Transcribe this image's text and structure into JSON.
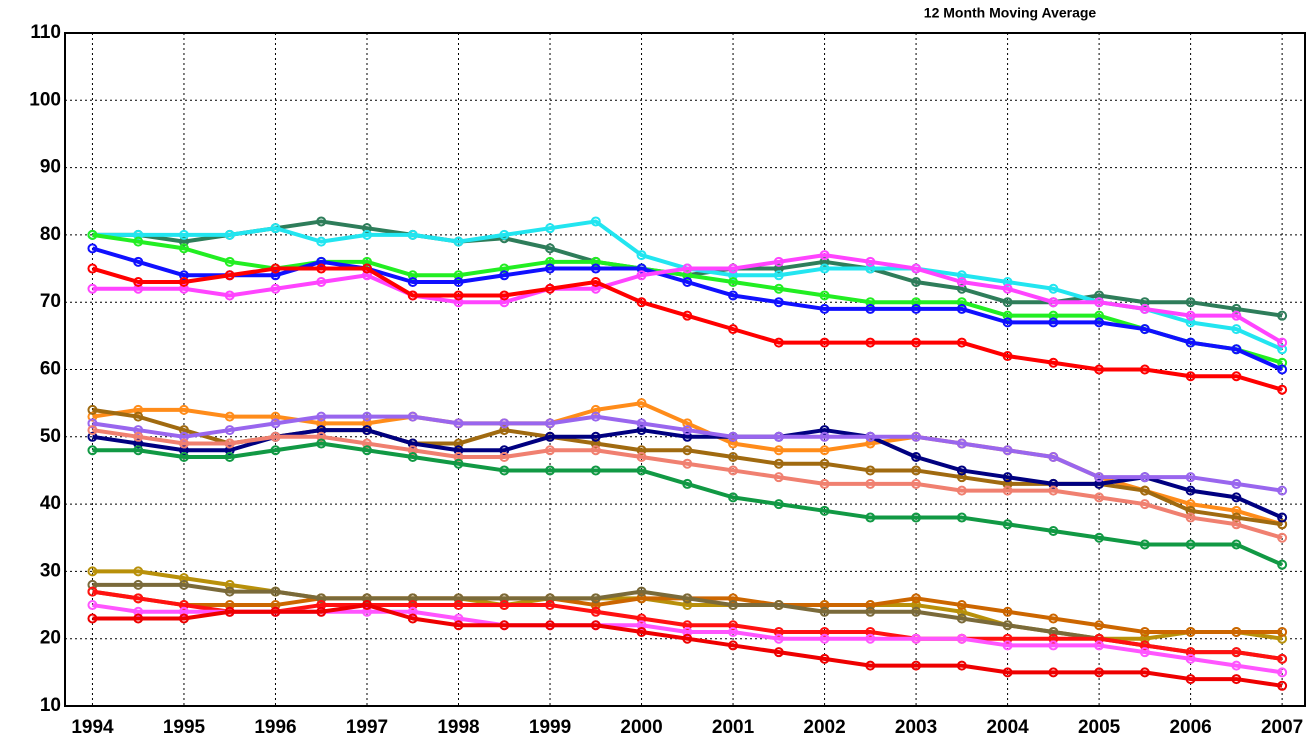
{
  "chart_data": {
    "type": "line",
    "title": "12 Month   Moving Average",
    "x": [
      1994,
      1994.5,
      1995,
      1995.5,
      1996,
      1996.5,
      1997,
      1997.5,
      1998,
      1998.5,
      1999,
      1999.5,
      2000,
      2000.5,
      2001,
      2001.5,
      2002,
      2002.5,
      2003,
      2003.5,
      2004,
      2004.5,
      2005,
      2005.5,
      2006,
      2006.5,
      2007
    ],
    "xlim": [
      1993.7,
      2007.25
    ],
    "xticks": [
      1994,
      1995,
      1996,
      1997,
      1998,
      1999,
      2000,
      2001,
      2002,
      2003,
      2004,
      2005,
      2006,
      2007
    ],
    "ylim": [
      10,
      110
    ],
    "yticks": [
      10,
      20,
      30,
      40,
      50,
      60,
      70,
      80,
      90,
      100,
      110
    ],
    "grid": true,
    "series": [
      {
        "color": "#2e7d5a",
        "values": [
          80,
          80,
          79,
          80,
          81,
          82,
          81,
          80,
          79,
          79.5,
          78,
          76,
          75,
          74,
          75,
          75,
          76,
          75,
          73,
          72,
          70,
          70,
          71,
          70,
          70,
          69,
          68
        ]
      },
      {
        "color": "#22e5f0",
        "values": [
          80,
          80,
          80,
          80,
          81,
          79,
          80,
          80,
          79,
          80,
          81,
          82,
          77,
          75,
          74,
          74,
          75,
          75,
          75,
          74,
          73,
          72,
          70,
          69,
          67,
          66,
          63
        ]
      },
      {
        "color": "#22ee22",
        "values": [
          80,
          79,
          78,
          76,
          75,
          76,
          76,
          74,
          74,
          75,
          76,
          76,
          75,
          74,
          73,
          72,
          71,
          70,
          70,
          70,
          68,
          68,
          68,
          66,
          64,
          63,
          61
        ]
      },
      {
        "color": "#1010ff",
        "values": [
          78,
          76,
          74,
          74,
          74,
          76,
          75,
          73,
          73,
          74,
          75,
          75,
          75,
          73,
          71,
          70,
          69,
          69,
          69,
          69,
          67,
          67,
          67,
          66,
          64,
          63,
          60
        ]
      },
      {
        "color": "#ff44ff",
        "values": [
          72,
          72,
          72,
          71,
          72,
          73,
          74,
          71,
          70,
          70,
          72,
          72,
          74,
          75,
          75,
          76,
          77,
          76,
          75,
          73,
          72,
          70,
          70,
          69,
          68,
          68,
          64
        ]
      },
      {
        "color": "#ff0000",
        "values": [
          75,
          73,
          73,
          74,
          75,
          75,
          75,
          71,
          71,
          71,
          72,
          73,
          70,
          68,
          66,
          64,
          64,
          64,
          64,
          64,
          62,
          61,
          60,
          60,
          59,
          59,
          57
        ]
      },
      {
        "color": "#ff8c1a",
        "values": [
          53,
          54,
          54,
          53,
          53,
          52,
          52,
          53,
          52,
          52,
          52,
          54,
          55,
          52,
          49,
          48,
          48,
          49,
          50,
          49,
          48,
          47,
          44,
          42,
          40,
          39,
          37
        ]
      },
      {
        "color": "#a06a10",
        "values": [
          54,
          53,
          51,
          49,
          50,
          51,
          51,
          49,
          49,
          51,
          50,
          49,
          48,
          48,
          47,
          46,
          46,
          45,
          45,
          44,
          43,
          43,
          43,
          42,
          39,
          38,
          37
        ]
      },
      {
        "color": "#000080",
        "values": [
          50,
          49,
          48,
          48,
          50,
          51,
          51,
          49,
          48,
          48,
          50,
          50,
          51,
          50,
          50,
          50,
          51,
          50,
          47,
          45,
          44,
          43,
          43,
          44,
          42,
          41,
          38
        ]
      },
      {
        "color": "#9966ee",
        "values": [
          52,
          51,
          50,
          51,
          52,
          53,
          53,
          53,
          52,
          52,
          52,
          53,
          52,
          51,
          50,
          50,
          50,
          50,
          50,
          49,
          48,
          47,
          44,
          44,
          44,
          43,
          42
        ]
      },
      {
        "color": "#f08070",
        "values": [
          51,
          50,
          49,
          49,
          50,
          50,
          49,
          48,
          47,
          47,
          48,
          48,
          47,
          46,
          45,
          44,
          43,
          43,
          43,
          42,
          42,
          42,
          41,
          40,
          38,
          37,
          35
        ]
      },
      {
        "color": "#119944",
        "values": [
          48,
          48,
          47,
          47,
          48,
          49,
          48,
          47,
          46,
          45,
          45,
          45,
          45,
          43,
          41,
          40,
          39,
          38,
          38,
          38,
          37,
          36,
          35,
          34,
          34,
          34,
          31
        ]
      },
      {
        "color": "#b8900a",
        "values": [
          30,
          30,
          29,
          28,
          27,
          26,
          26,
          26,
          26,
          25,
          26,
          26,
          26,
          25,
          25,
          25,
          25,
          25,
          25,
          24,
          22,
          21,
          20,
          20,
          21,
          21,
          20
        ]
      },
      {
        "color": "#cc6600",
        "values": [
          27,
          26,
          25,
          25,
          25,
          26,
          26,
          26,
          26,
          26,
          26,
          25,
          26,
          26,
          26,
          25,
          25,
          25,
          26,
          25,
          24,
          23,
          22,
          21,
          21,
          21,
          21
        ]
      },
      {
        "color": "#7a6a3a",
        "values": [
          28,
          28,
          28,
          27,
          27,
          26,
          26,
          26,
          26,
          26,
          26,
          26,
          27,
          26,
          25,
          25,
          24,
          24,
          24,
          23,
          22,
          21,
          20,
          19,
          18,
          18,
          17
        ]
      },
      {
        "color": "#ff1111",
        "values": [
          27,
          26,
          25,
          24,
          24,
          25,
          25,
          25,
          25,
          25,
          25,
          24,
          23,
          22,
          22,
          21,
          21,
          21,
          20,
          20,
          20,
          20,
          20,
          19,
          18,
          18,
          17
        ]
      },
      {
        "color": "#ff55ff",
        "values": [
          25,
          24,
          24,
          24,
          24,
          24,
          24,
          24,
          23,
          22,
          22,
          22,
          22,
          21,
          21,
          20,
          20,
          20,
          20,
          20,
          19,
          19,
          19,
          18,
          17,
          16,
          15
        ]
      },
      {
        "color": "#ee0000",
        "values": [
          23,
          23,
          23,
          24,
          24,
          24,
          25,
          23,
          22,
          22,
          22,
          22,
          21,
          20,
          19,
          18,
          17,
          16,
          16,
          16,
          15,
          15,
          15,
          15,
          14,
          14,
          13
        ]
      }
    ]
  }
}
